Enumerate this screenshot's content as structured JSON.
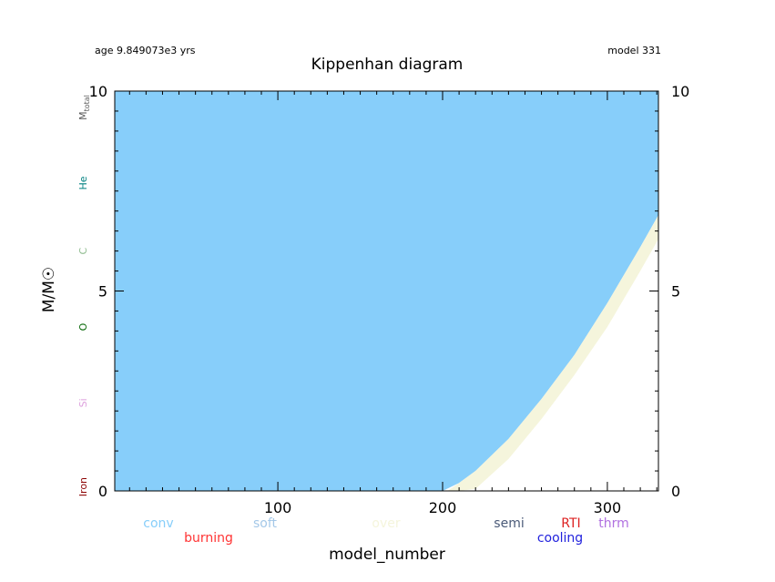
{
  "header": {
    "age": "age 9.849073e3 yrs",
    "model": "model 331"
  },
  "chart_data": {
    "type": "area",
    "title": "Kippenhan diagram",
    "xlabel": "model_number",
    "ylabel": "M/M☉",
    "xlim": [
      1,
      331
    ],
    "ylim": [
      0,
      10
    ],
    "xticks": [
      100,
      200,
      300
    ],
    "yticks_left": [
      0,
      5,
      10
    ],
    "yticks_right": [
      0,
      5,
      10
    ],
    "grid": false,
    "series": [
      {
        "name": "conv",
        "color": "#87cefa",
        "x": [
          1,
          200,
          210,
          220,
          240,
          260,
          280,
          300,
          320,
          331
        ],
        "lower": [
          0,
          0,
          0.2,
          0.5,
          1.3,
          2.3,
          3.4,
          4.7,
          6.1,
          6.9
        ],
        "upper": [
          10,
          10,
          10,
          10,
          10,
          10,
          10,
          10,
          10,
          10
        ]
      },
      {
        "name": "over",
        "color": "#f5f5dc",
        "x": [
          203,
          210,
          220,
          240,
          260,
          280,
          300,
          320,
          331
        ],
        "lower": [
          0,
          0,
          0.05,
          0.8,
          1.8,
          2.9,
          4.1,
          5.5,
          6.3
        ],
        "upper": [
          0,
          0.2,
          0.5,
          1.3,
          2.3,
          3.4,
          4.7,
          6.1,
          6.9
        ]
      }
    ],
    "abundance_labels": [
      {
        "text": "Iron",
        "y": 0.1,
        "color": "#8b0000"
      },
      {
        "text": "Si",
        "y": 2.2,
        "color": "#dda0dd"
      },
      {
        "text": "O",
        "y": 4.1,
        "color": "#006400"
      },
      {
        "text": "C",
        "y": 6.0,
        "color": "#8fbc8f"
      },
      {
        "text": "He",
        "y": 7.7,
        "color": "#008080"
      },
      {
        "text": "M",
        "sub": "total",
        "y": 9.6,
        "color": "#555555"
      }
    ],
    "legend": [
      {
        "text": "conv",
        "color": "#87cefa",
        "row": 0
      },
      {
        "text": "burning",
        "color": "#ff3333",
        "row": 1
      },
      {
        "text": "soft",
        "color": "#a4c8e8",
        "row": 0
      },
      {
        "text": "over",
        "color": "#f5f5dc",
        "row": 0
      },
      {
        "text": "semi",
        "color": "#4a5a78",
        "row": 0
      },
      {
        "text": "cooling",
        "color": "#2222dd",
        "row": 1
      },
      {
        "text": "RTI",
        "color": "#dd2222",
        "row": 0
      },
      {
        "text": "thrm",
        "color": "#b070e0",
        "row": 0
      }
    ]
  }
}
